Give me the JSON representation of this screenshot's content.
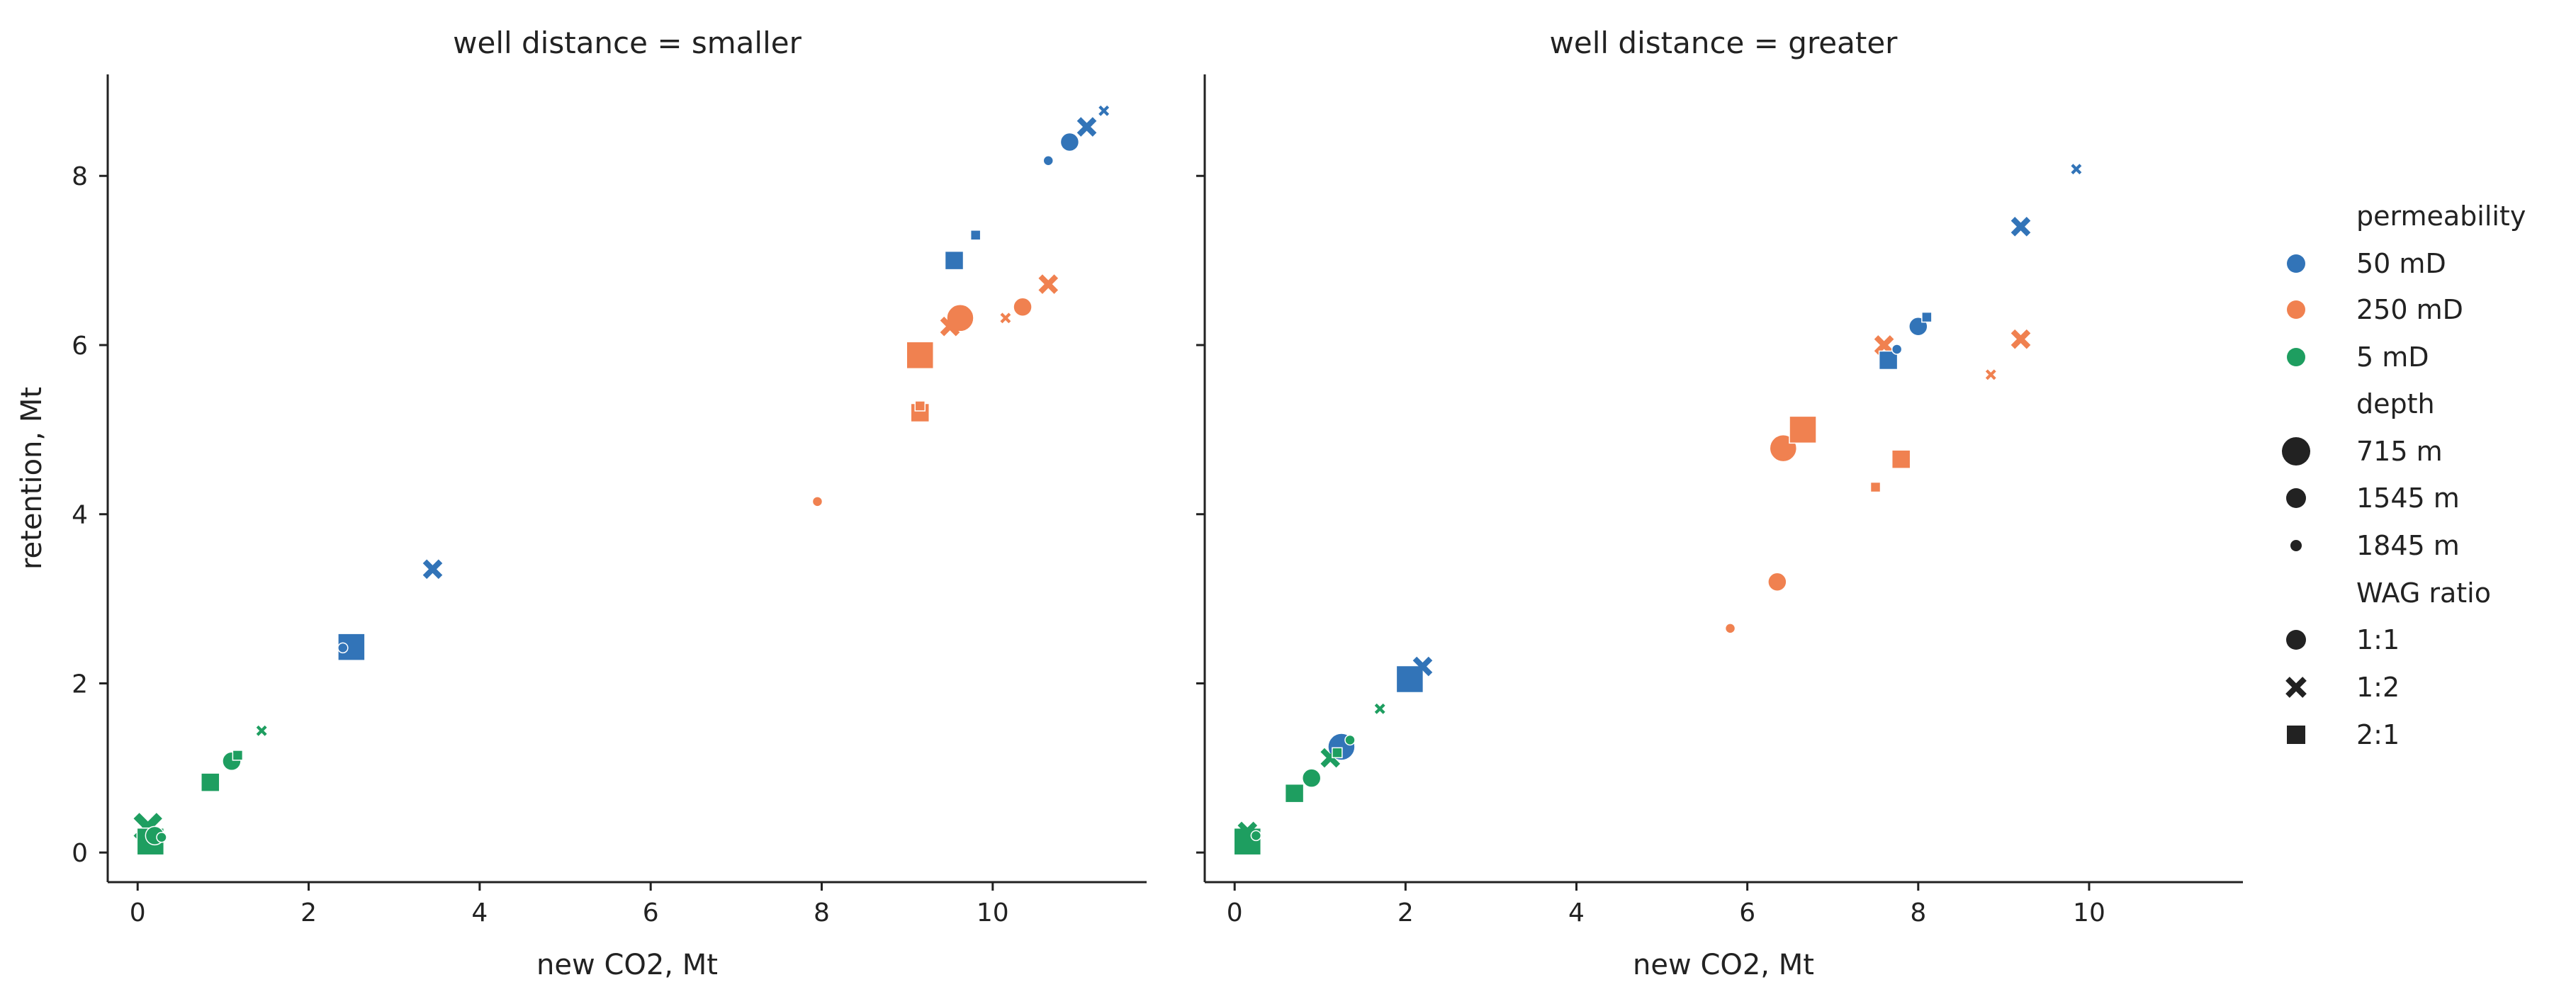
{
  "chart_data": {
    "type": "scatter",
    "y_label": "retention, Mt",
    "x_ticks": [
      0,
      2,
      4,
      6,
      8,
      10
    ],
    "y_ticks": [
      0,
      2,
      4,
      6,
      8
    ],
    "xlim": [
      -0.35,
      11.8
    ],
    "ylim": [
      -0.35,
      9.2
    ],
    "colors": {
      "50 mD": "#3274b8",
      "250 mD": "#f08150",
      "5 mD": "#1e9e60"
    },
    "panels": [
      {
        "title": "well distance = smaller",
        "xlabel": "new CO2, Mt",
        "points": [
          {
            "x": 0.12,
            "y": 0.3,
            "perm": "5 mD",
            "depth": "715 m",
            "wag": "1:2"
          },
          {
            "x": 0.2,
            "y": 0.2,
            "perm": "5 mD",
            "depth": "1545 m",
            "wag": "1:1"
          },
          {
            "x": 0.28,
            "y": 0.18,
            "perm": "5 mD",
            "depth": "1845 m",
            "wag": "1:1"
          },
          {
            "x": 0.15,
            "y": 0.13,
            "perm": "5 mD",
            "depth": "715 m",
            "wag": "2:1"
          },
          {
            "x": 0.85,
            "y": 0.83,
            "perm": "5 mD",
            "depth": "1545 m",
            "wag": "2:1"
          },
          {
            "x": 1.1,
            "y": 1.08,
            "perm": "5 mD",
            "depth": "1545 m",
            "wag": "1:1"
          },
          {
            "x": 1.17,
            "y": 1.15,
            "perm": "5 mD",
            "depth": "1845 m",
            "wag": "2:1"
          },
          {
            "x": 1.45,
            "y": 1.44,
            "perm": "5 mD",
            "depth": "1845 m",
            "wag": "1:2"
          },
          {
            "x": 2.4,
            "y": 2.42,
            "perm": "50 mD",
            "depth": "1845 m",
            "wag": "1:1"
          },
          {
            "x": 2.5,
            "y": 2.43,
            "perm": "50 mD",
            "depth": "715 m",
            "wag": "2:1"
          },
          {
            "x": 3.45,
            "y": 3.35,
            "perm": "50 mD",
            "depth": "1545 m",
            "wag": "1:2"
          },
          {
            "x": 7.95,
            "y": 4.15,
            "perm": "250 mD",
            "depth": "1845 m",
            "wag": "1:1"
          },
          {
            "x": 9.15,
            "y": 5.28,
            "perm": "250 mD",
            "depth": "1845 m",
            "wag": "2:1"
          },
          {
            "x": 9.15,
            "y": 5.2,
            "perm": "250 mD",
            "depth": "1545 m",
            "wag": "2:1"
          },
          {
            "x": 9.15,
            "y": 5.88,
            "perm": "250 mD",
            "depth": "715 m",
            "wag": "2:1"
          },
          {
            "x": 9.5,
            "y": 6.22,
            "perm": "250 mD",
            "depth": "1545 m",
            "wag": "1:2"
          },
          {
            "x": 9.62,
            "y": 6.32,
            "perm": "250 mD",
            "depth": "715 m",
            "wag": "1:1"
          },
          {
            "x": 10.15,
            "y": 6.32,
            "perm": "250 mD",
            "depth": "1845 m",
            "wag": "1:2"
          },
          {
            "x": 10.35,
            "y": 6.45,
            "perm": "250 mD",
            "depth": "1545 m",
            "wag": "1:1"
          },
          {
            "x": 10.65,
            "y": 6.72,
            "perm": "250 mD",
            "depth": "1545 m",
            "wag": "1:2"
          },
          {
            "x": 9.55,
            "y": 7.0,
            "perm": "50 mD",
            "depth": "1545 m",
            "wag": "2:1"
          },
          {
            "x": 9.8,
            "y": 7.3,
            "perm": "50 mD",
            "depth": "1845 m",
            "wag": "2:1"
          },
          {
            "x": 10.65,
            "y": 8.18,
            "perm": "50 mD",
            "depth": "1845 m",
            "wag": "1:1"
          },
          {
            "x": 10.9,
            "y": 8.4,
            "perm": "50 mD",
            "depth": "1545 m",
            "wag": "1:1"
          },
          {
            "x": 11.1,
            "y": 8.58,
            "perm": "50 mD",
            "depth": "1545 m",
            "wag": "1:2"
          },
          {
            "x": 11.3,
            "y": 8.77,
            "perm": "50 mD",
            "depth": "1845 m",
            "wag": "1:2"
          }
        ]
      },
      {
        "title": "well distance = greater",
        "xlabel": "new CO2, Mt",
        "points": [
          {
            "x": 0.15,
            "y": 0.25,
            "perm": "5 mD",
            "depth": "1545 m",
            "wag": "1:2"
          },
          {
            "x": 0.25,
            "y": 0.2,
            "perm": "5 mD",
            "depth": "1845 m",
            "wag": "1:1"
          },
          {
            "x": 0.15,
            "y": 0.13,
            "perm": "5 mD",
            "depth": "715 m",
            "wag": "2:1"
          },
          {
            "x": 0.7,
            "y": 0.7,
            "perm": "5 mD",
            "depth": "1545 m",
            "wag": "2:1"
          },
          {
            "x": 0.9,
            "y": 0.88,
            "perm": "5 mD",
            "depth": "1545 m",
            "wag": "1:1"
          },
          {
            "x": 1.12,
            "y": 1.12,
            "perm": "5 mD",
            "depth": "1545 m",
            "wag": "1:2"
          },
          {
            "x": 1.2,
            "y": 1.18,
            "perm": "5 mD",
            "depth": "1845 m",
            "wag": "2:1"
          },
          {
            "x": 1.35,
            "y": 1.33,
            "perm": "5 mD",
            "depth": "1845 m",
            "wag": "1:1"
          },
          {
            "x": 1.25,
            "y": 1.25,
            "perm": "50 mD",
            "depth": "715 m",
            "wag": "1:1"
          },
          {
            "x": 1.7,
            "y": 1.7,
            "perm": "5 mD",
            "depth": "1845 m",
            "wag": "1:2"
          },
          {
            "x": 2.05,
            "y": 2.05,
            "perm": "50 mD",
            "depth": "715 m",
            "wag": "2:1"
          },
          {
            "x": 2.2,
            "y": 2.2,
            "perm": "50 mD",
            "depth": "1545 m",
            "wag": "1:2"
          },
          {
            "x": 5.8,
            "y": 2.65,
            "perm": "250 mD",
            "depth": "1845 m",
            "wag": "1:1"
          },
          {
            "x": 6.35,
            "y": 3.2,
            "perm": "250 mD",
            "depth": "1545 m",
            "wag": "1:1"
          },
          {
            "x": 6.42,
            "y": 4.78,
            "perm": "250 mD",
            "depth": "715 m",
            "wag": "1:1"
          },
          {
            "x": 6.65,
            "y": 5.0,
            "perm": "250 mD",
            "depth": "715 m",
            "wag": "2:1"
          },
          {
            "x": 7.5,
            "y": 4.32,
            "perm": "250 mD",
            "depth": "1845 m",
            "wag": "2:1"
          },
          {
            "x": 7.8,
            "y": 4.65,
            "perm": "250 mD",
            "depth": "1545 m",
            "wag": "2:1"
          },
          {
            "x": 7.6,
            "y": 6.0,
            "perm": "250 mD",
            "depth": "1545 m",
            "wag": "1:2"
          },
          {
            "x": 7.65,
            "y": 5.82,
            "perm": "50 mD",
            "depth": "1545 m",
            "wag": "2:1"
          },
          {
            "x": 7.75,
            "y": 5.95,
            "perm": "50 mD",
            "depth": "1845 m",
            "wag": "1:1"
          },
          {
            "x": 8.0,
            "y": 6.22,
            "perm": "50 mD",
            "depth": "1545 m",
            "wag": "1:1"
          },
          {
            "x": 8.1,
            "y": 6.33,
            "perm": "50 mD",
            "depth": "1845 m",
            "wag": "2:1"
          },
          {
            "x": 8.85,
            "y": 5.65,
            "perm": "250 mD",
            "depth": "1845 m",
            "wag": "1:2"
          },
          {
            "x": 9.2,
            "y": 6.07,
            "perm": "250 mD",
            "depth": "1545 m",
            "wag": "1:2"
          },
          {
            "x": 9.2,
            "y": 7.4,
            "perm": "50 mD",
            "depth": "1545 m",
            "wag": "1:2"
          },
          {
            "x": 9.85,
            "y": 8.08,
            "perm": "50 mD",
            "depth": "1845 m",
            "wag": "1:2"
          }
        ]
      }
    ],
    "legend": {
      "placement": "right",
      "groups": [
        {
          "title": "permeability",
          "entries": [
            "50 mD",
            "250 mD",
            "5 mD"
          ]
        },
        {
          "title": "depth",
          "entries": [
            "715 m",
            "1545 m",
            "1845 m"
          ]
        },
        {
          "title": "WAG ratio",
          "entries": [
            "1:1",
            "1:2",
            "2:1"
          ]
        }
      ]
    }
  }
}
